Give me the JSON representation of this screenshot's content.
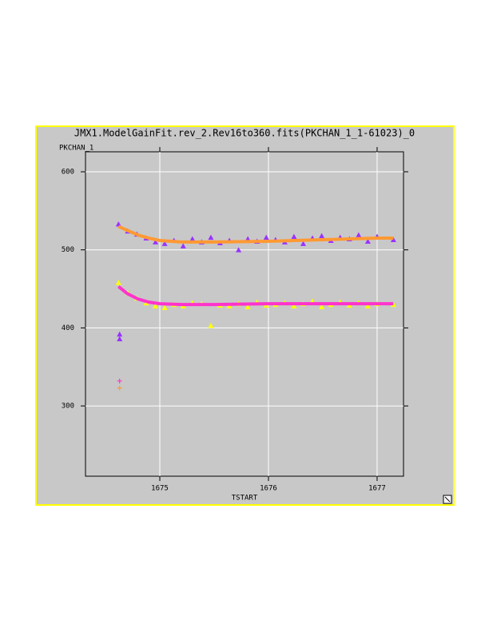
{
  "chart_data": {
    "type": "scatter",
    "title": "JMX1.ModelGainFit.rev_2.Rev16to360.fits(PKCHAN_1_1-61023)_0",
    "y_label": "PKCHAN_1",
    "x_label": "TSTART",
    "xlim": [
      1674.316,
      1677.243
    ],
    "ylim": [
      210,
      625.6
    ],
    "xticks": [
      1675,
      1676,
      1677
    ],
    "yticks": [
      300,
      400,
      500,
      600
    ],
    "grid": true,
    "series": [
      {
        "color": "#9933ff",
        "marker": "triangle",
        "x": [
          1674.62,
          1674.705,
          1674.79,
          1674.875,
          1674.96,
          1675.045,
          1675.13,
          1675.215,
          1675.3,
          1675.385,
          1675.47,
          1675.555,
          1675.64,
          1675.725,
          1675.81,
          1675.895,
          1675.98,
          1676.065,
          1676.15,
          1676.235,
          1676.32,
          1676.405,
          1676.49,
          1676.575,
          1676.66,
          1676.745,
          1676.83,
          1676.915,
          1677.0,
          1677.15
        ],
        "values": [
          533,
          524,
          520,
          515,
          510,
          508,
          512,
          505,
          514,
          510,
          516,
          509,
          512,
          500,
          514,
          511,
          516,
          513,
          510,
          517,
          508,
          515,
          518,
          512,
          516,
          514,
          519,
          511,
          517,
          513
        ]
      },
      {
        "color": "#ffff00",
        "marker": "triangle",
        "x": [
          1674.62,
          1674.705,
          1674.79,
          1674.875,
          1674.96,
          1675.045,
          1675.13,
          1675.215,
          1675.3,
          1675.385,
          1675.47,
          1675.555,
          1675.64,
          1675.725,
          1675.81,
          1675.895,
          1675.98,
          1676.065,
          1676.15,
          1676.235,
          1676.32,
          1676.405,
          1676.49,
          1676.575,
          1676.66,
          1676.745,
          1676.83,
          1676.915,
          1677.0,
          1677.15
        ],
        "values": [
          458,
          445,
          438,
          432,
          428,
          426,
          430,
          428,
          432,
          431,
          403,
          429,
          428,
          431,
          427,
          433,
          429,
          430,
          432,
          428,
          431,
          434,
          427,
          430,
          433,
          429,
          432,
          428,
          431,
          430
        ]
      },
      {
        "color": "#9933ff",
        "marker": "triangle",
        "x": [
          1674.63,
          1674.63
        ],
        "values": [
          392,
          386
        ]
      },
      {
        "color": "#ff33cc",
        "marker": "plus",
        "x": [
          1674.63
        ],
        "values": [
          332
        ]
      },
      {
        "color": "#ff9933",
        "marker": "plus",
        "x": [
          1674.63
        ],
        "values": [
          323
        ]
      },
      {
        "color": "#ff9933",
        "marker": "line",
        "x": [
          1674.62,
          1674.7,
          1674.8,
          1674.9,
          1675,
          1675.2,
          1675.5,
          1676,
          1676.5,
          1677,
          1677.15
        ],
        "values": [
          530,
          525,
          519,
          515,
          512,
          510,
          510,
          511,
          513,
          515,
          515
        ]
      },
      {
        "color": "#ff33cc",
        "marker": "line",
        "x": [
          1674.62,
          1674.7,
          1674.8,
          1674.9,
          1675,
          1675.2,
          1675.5,
          1676,
          1676.5,
          1677,
          1677.15
        ],
        "values": [
          453,
          444,
          437,
          433,
          431,
          430,
          430,
          431,
          431,
          431,
          431
        ]
      }
    ]
  }
}
